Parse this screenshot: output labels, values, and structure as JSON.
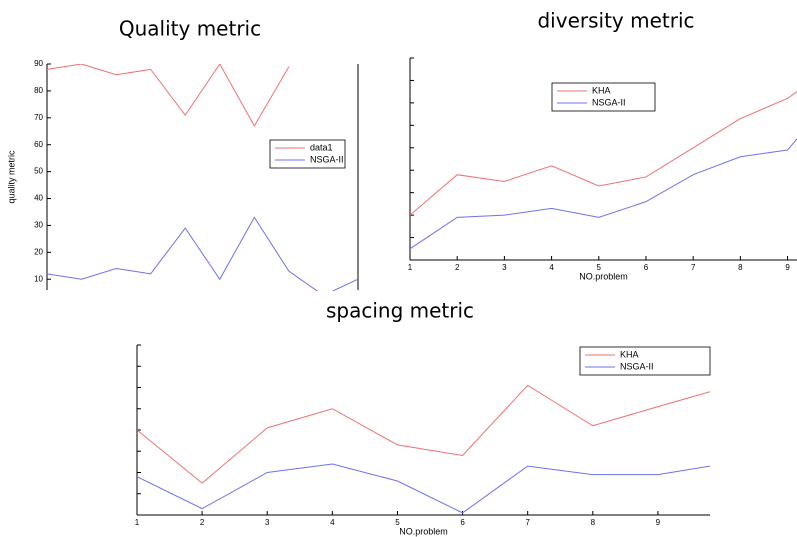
{
  "chart_data": [
    {
      "type": "line",
      "title": "Quality metric",
      "ylabel": "quality metric",
      "x": [
        1,
        2,
        3,
        4,
        5,
        6,
        7,
        8,
        9,
        10
      ],
      "xlim": [
        1,
        10
      ],
      "ylim": [
        6,
        90
      ],
      "yticks": [
        10,
        20,
        30,
        40,
        50,
        60,
        70,
        80,
        90
      ],
      "legend": "right",
      "series": [
        {
          "name": "data1",
          "color": "#f07070",
          "values": [
            88,
            90,
            86,
            88,
            71,
            90,
            67,
            89,
            null,
            null
          ]
        },
        {
          "name": "NSGA-II",
          "color": "#7070f0",
          "values": [
            12,
            10,
            14,
            12,
            29,
            10,
            33,
            13,
            4,
            10
          ]
        }
      ]
    },
    {
      "type": "line",
      "title": "diversity metric",
      "xlabel": "NO.problem",
      "x": [
        1,
        2,
        3,
        4,
        5,
        6,
        7,
        8,
        9,
        9.2
      ],
      "xlim": [
        1,
        9.2
      ],
      "xticks": [
        1,
        2,
        3,
        4,
        5,
        6,
        7,
        8,
        9
      ],
      "ylim": [
        0,
        9
      ],
      "legend": "upper left",
      "series": [
        {
          "name": "KHA",
          "color": "#f07070",
          "values": [
            2,
            3.8,
            3.5,
            4.2,
            3.3,
            3.7,
            5,
            6.3,
            7.2,
            7.5
          ]
        },
        {
          "name": "NSGA-II",
          "color": "#7070f0",
          "values": [
            0.5,
            1.9,
            2,
            2.3,
            1.9,
            2.6,
            3.8,
            4.6,
            4.9,
            5.4
          ]
        }
      ]
    },
    {
      "type": "line",
      "title": "spacing metric",
      "xlabel": "NO.problem",
      "x": [
        1,
        2,
        3,
        4,
        5,
        6,
        7,
        8,
        9,
        9.8
      ],
      "xlim": [
        1,
        9.8
      ],
      "xticks": [
        1,
        2,
        3,
        4,
        5,
        6,
        7,
        8,
        9
      ],
      "ylim": [
        0,
        8
      ],
      "legend": "upper right",
      "series": [
        {
          "name": "KHA",
          "color": "#f07070",
          "values": [
            4,
            1.5,
            4.1,
            5,
            3.3,
            2.8,
            6.1,
            4.2,
            5.1,
            5.8
          ]
        },
        {
          "name": "NSGA-II",
          "color": "#7070f0",
          "values": [
            1.8,
            0.3,
            2,
            2.4,
            1.6,
            0.1,
            2.3,
            1.9,
            1.9,
            2.3
          ]
        }
      ]
    }
  ]
}
